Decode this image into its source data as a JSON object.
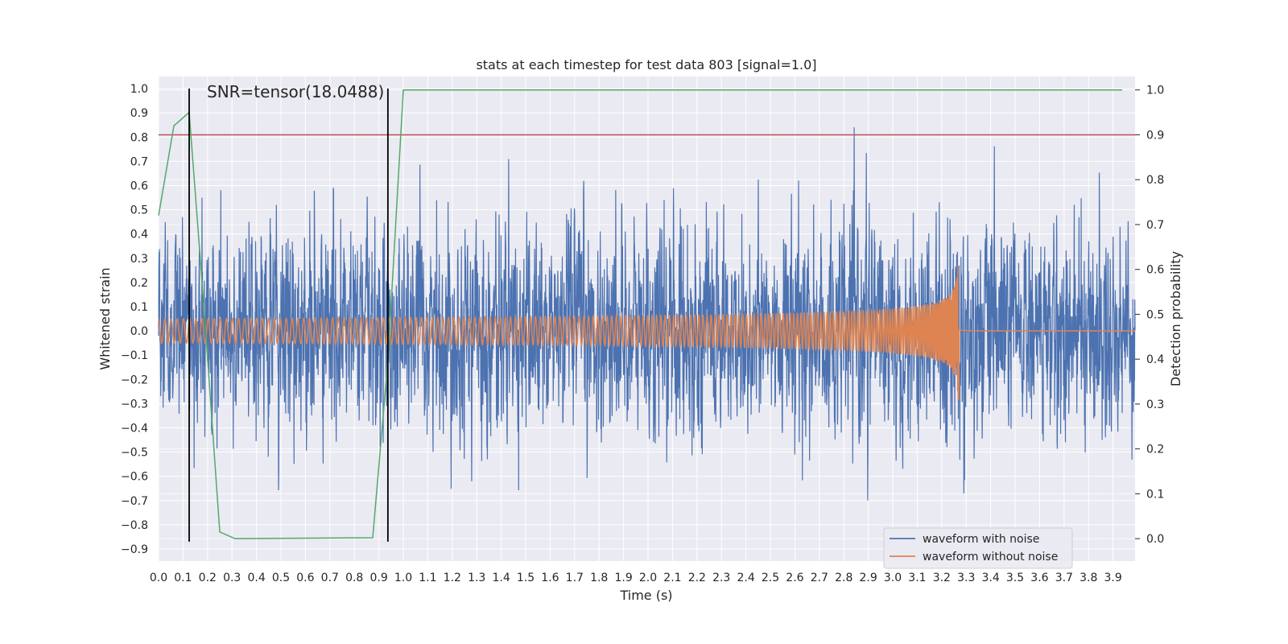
{
  "chart_data": {
    "type": "line",
    "title": "stats at each timestep for test data 803 [signal=1.0]",
    "xlabel": "Time (s)",
    "ylabel_left": "Whitened strain",
    "ylabel_right": "Detection probability",
    "xlim": [
      0.0,
      3.99
    ],
    "ylim_left": [
      -0.95,
      1.05
    ],
    "ylim_right": [
      -0.05,
      1.03
    ],
    "x_ticks": [
      "0.0",
      "0.1",
      "0.2",
      "0.3",
      "0.4",
      "0.5",
      "0.6",
      "0.7",
      "0.8",
      "0.9",
      "1.0",
      "1.1",
      "1.2",
      "1.3",
      "1.4",
      "1.5",
      "1.6",
      "1.7",
      "1.8",
      "1.9",
      "2.0",
      "2.1",
      "2.2",
      "2.3",
      "2.4",
      "2.5",
      "2.6",
      "2.7",
      "2.8",
      "2.9",
      "3.0",
      "3.1",
      "3.2",
      "3.3",
      "3.4",
      "3.5",
      "3.6",
      "3.7",
      "3.8",
      "3.9"
    ],
    "y_ticks_left": [
      "-0.9",
      "-0.8",
      "-0.7",
      "-0.6",
      "-0.5",
      "-0.4",
      "-0.3",
      "-0.2",
      "-0.1",
      "0.0",
      "0.1",
      "0.2",
      "0.3",
      "0.4",
      "0.5",
      "0.6",
      "0.7",
      "0.8",
      "0.9",
      "1.0"
    ],
    "y_ticks_right": [
      "0.0",
      "0.1",
      "0.2",
      "0.3",
      "0.4",
      "0.5",
      "0.6",
      "0.7",
      "0.8",
      "0.9",
      "1.0"
    ],
    "annotation": "SNR=tensor(18.0488)",
    "threshold_right": 0.9,
    "vertical_lines_x": [
      0.125,
      0.937
    ],
    "vertical_lines_yrange": [
      -0.87,
      1.0
    ],
    "probability_series": {
      "name": "detection probability",
      "color": "#55a868",
      "x": [
        0.0,
        0.0625,
        0.125,
        0.1875,
        0.25,
        0.3125,
        0.875,
        0.9375,
        1.0,
        3.9375
      ],
      "y": [
        0.72,
        0.92,
        0.95,
        0.5,
        0.015,
        0.0,
        0.002,
        0.4,
        1.0,
        1.0
      ]
    },
    "threshold_color": "#c44e52",
    "series": [
      {
        "name": "waveform with noise",
        "color": "#4c72b0",
        "description": "noisy whitened strain, roughly -0.85 to 1.0"
      },
      {
        "name": "waveform without noise",
        "color": "#dd8452",
        "description": "chirp signal growing in amplitude, peaking near 3.27 s then flat at 0"
      }
    ],
    "legend_position": "lower-right"
  }
}
